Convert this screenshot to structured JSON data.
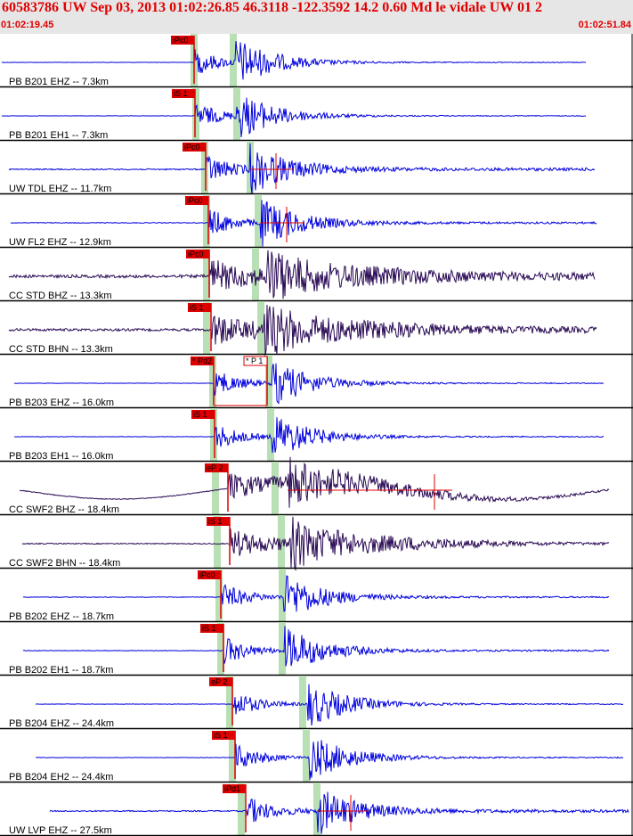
{
  "header": {
    "title": "60583786 UW Sep 03, 2013 01:02:26.85   46.3118 -122.3592 14.2 0.60 Md le vidale UW 01   2",
    "start_time": "01:02:19.45",
    "end_time": "01:02:51.84"
  },
  "colors": {
    "header_bg": "#e6e6e6",
    "header_text": "#e00000",
    "trace_blue": "#0000dd",
    "trace_dark": "#2a0a55",
    "pick_red": "#dd0000",
    "window_green": "#b8e0b4"
  },
  "traces": [
    {
      "label": "PB B201 EHZ -- 7.3km",
      "color": "blue",
      "pick": "iPc0",
      "pick2": "",
      "noise": 0.03
    },
    {
      "label": "PB B201 EH1 -- 7.3km",
      "color": "blue",
      "pick": "iS 1",
      "pick2": "",
      "noise": 0.03
    },
    {
      "label": "UW TDL EHZ -- 11.7km",
      "color": "blue",
      "pick": "iPc0",
      "pick2": "",
      "noise": 0.12
    },
    {
      "label": "UW FL2 EHZ -- 12.9km",
      "color": "blue",
      "pick": "iPc0",
      "pick2": "",
      "noise": 0.08
    },
    {
      "label": "CC STD BHZ -- 13.3km",
      "color": "dark",
      "pick": "iPc0",
      "pick2": "",
      "noise": 0.3
    },
    {
      "label": "CC STD BHN -- 13.3km",
      "color": "dark",
      "pick": "iS 1",
      "pick2": "",
      "noise": 0.25
    },
    {
      "label": "PB B203 EHZ -- 16.0km",
      "color": "blue",
      "pick": "* Pd2",
      "pick2": "* P 1",
      "noise": 0.04
    },
    {
      "label": "PB B203 EH1 -- 16.0km",
      "color": "blue",
      "pick": "iS 1",
      "pick2": "",
      "noise": 0.04
    },
    {
      "label": "CC SWF2 BHZ -- 18.4km",
      "color": "dark",
      "pick": "eP 2",
      "pick2": "",
      "noise": 0.08
    },
    {
      "label": "CC SWF2 BHN -- 18.4km",
      "color": "dark",
      "pick": "iS 1",
      "pick2": "",
      "noise": 0.1
    },
    {
      "label": "PB B202 EHZ -- 18.7km",
      "color": "blue",
      "pick": "iPc0",
      "pick2": "",
      "noise": 0.06
    },
    {
      "label": "PB B202 EH1 -- 18.7km",
      "color": "blue",
      "pick": "iS 1",
      "pick2": "",
      "noise": 0.06
    },
    {
      "label": "PB B204 EHZ -- 24.4km",
      "color": "blue",
      "pick": "eP 2",
      "pick2": "",
      "noise": 0.04
    },
    {
      "label": "PB B204 EH2 -- 24.4km",
      "color": "blue",
      "pick": "iS 1",
      "pick2": "",
      "noise": 0.04
    },
    {
      "label": "UW LVP EHZ -- 27.5km",
      "color": "blue",
      "pick": "iPd1",
      "pick2": "",
      "noise": 0.12
    }
  ]
}
